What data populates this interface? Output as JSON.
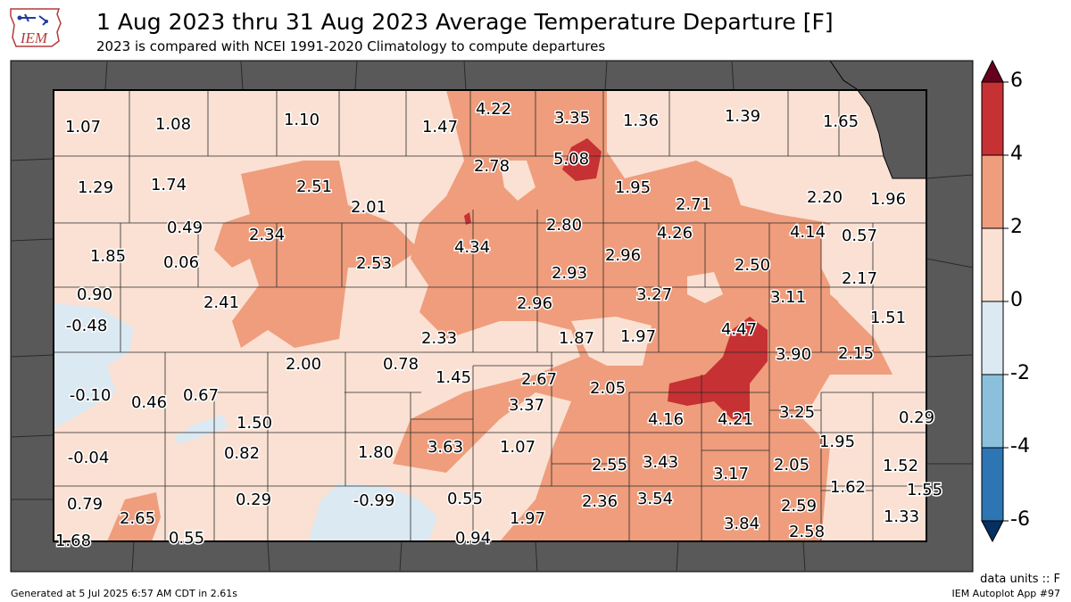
{
  "header": {
    "logo_text": "IEM",
    "title": "1 Aug 2023 thru 31 Aug 2023 Average Temperature Departure [F]",
    "subtitle": "2023 is compared with NCEI 1991-2020 Climatology to compute departures"
  },
  "colors": {
    "neighbor_fill": "#595959",
    "band_0_2": "#fae1d3",
    "band_2_4": "#ef9d7c",
    "band_4_6": "#c63133",
    "band_m2_0": "#dbe9f2",
    "band_m4_m2": "#8bc0dc",
    "band_m6_m4": "#2e75b4",
    "overflow_high": "#67001f",
    "overflow_low": "#053061"
  },
  "colorbar": {
    "ticks": [
      "6",
      "4",
      "2",
      "0",
      "-2",
      "-4",
      "-6"
    ]
  },
  "station_values": [
    "1.07",
    "1.08",
    "1.10",
    "1.47",
    "4.22",
    "3.35",
    "1.36",
    "1.39",
    "1.65",
    "1.29",
    "1.74",
    "2.51",
    "2.01",
    "2.78",
    "5.08",
    "1.95",
    "2.71",
    "2.20",
    "1.96",
    "0.49",
    "2.34",
    "4.34",
    "2.80",
    "4.26",
    "4.14",
    "0.57",
    "1.85",
    "0.06",
    "2.53",
    "2.96",
    "2.50",
    "2.93",
    "2.17",
    "0.90",
    "2.41",
    "2.96",
    "3.27",
    "3.11",
    "1.51",
    "-0.48",
    "2.33",
    "1.87",
    "1.97",
    "4.47",
    "3.90",
    "2.15",
    "2.00",
    "0.78",
    "1.45",
    "2.67",
    "-0.10",
    "0.46",
    "0.67",
    "3.37",
    "2.05",
    "4.16",
    "4.21",
    "3.25",
    "0.29",
    "1.50",
    "3.63",
    "1.07",
    "1.95",
    "-0.04",
    "0.82",
    "1.80",
    "2.55",
    "3.43",
    "2.05",
    "1.52",
    "3.17",
    "1.62",
    "1.55",
    "0.79",
    "0.29",
    "-0.99",
    "0.55",
    "2.36",
    "3.54",
    "2.59",
    "2.65",
    "1.97",
    "3.84",
    "1.33",
    "1.68",
    "0.55",
    "0.94",
    "2.58"
  ],
  "footer": {
    "units": "data units :: F",
    "generated": "Generated at 5 Jul 2025 6:57 AM CDT in 2.61s",
    "app": "IEM Autoplot App #97"
  }
}
